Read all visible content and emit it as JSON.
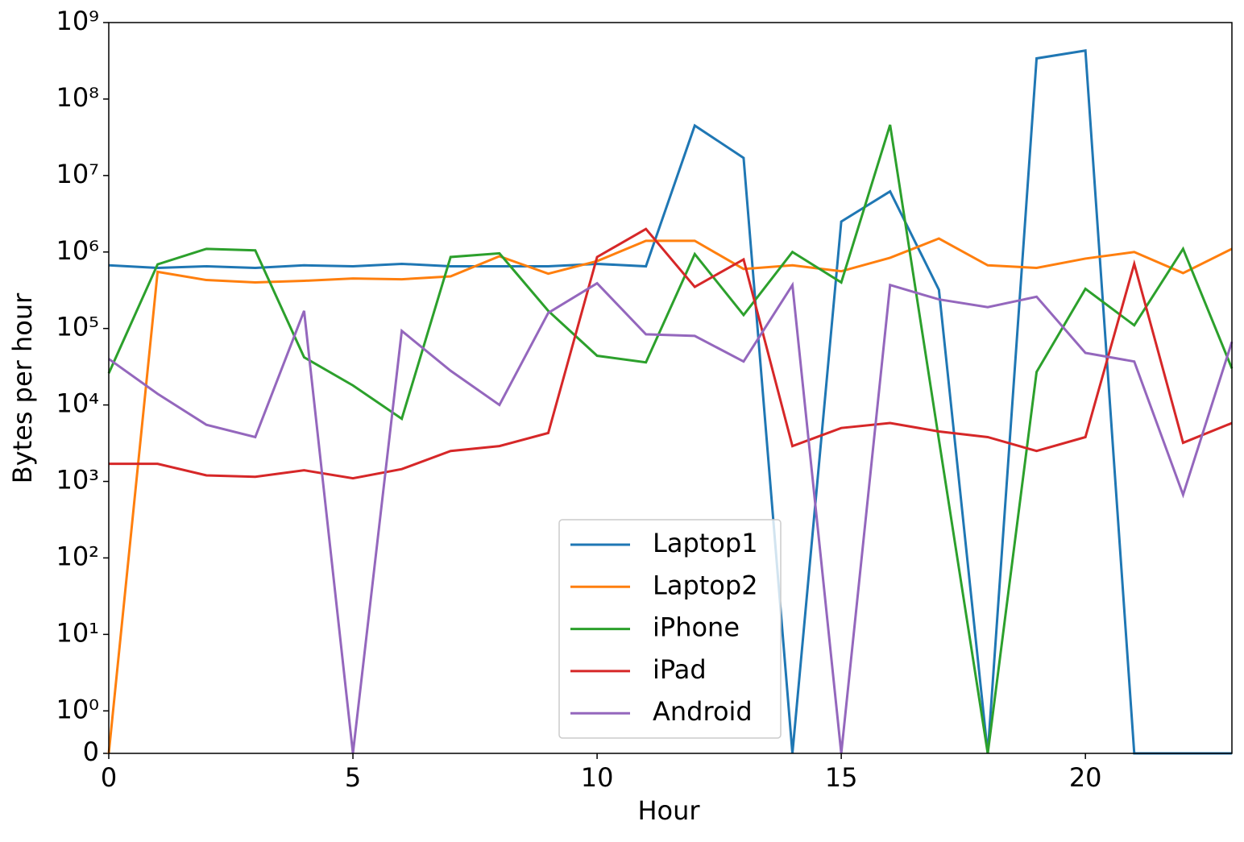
{
  "chart_data": {
    "type": "line",
    "x_label": "Hour",
    "y_label": "Bytes per hour",
    "x": [
      0,
      1,
      2,
      3,
      4,
      5,
      6,
      7,
      8,
      9,
      10,
      11,
      12,
      13,
      14,
      15,
      16,
      17,
      18,
      19,
      20,
      21,
      22,
      23
    ],
    "xlim": [
      0,
      23
    ],
    "xticks": [
      0,
      5,
      10,
      15,
      20
    ],
    "yscale": "symlog",
    "linthresh": 1,
    "linscale": 0.5,
    "ylim": [
      0,
      1000000000
    ],
    "yticks": [
      0,
      {
        "value": 1,
        "label": "10⁰"
      },
      {
        "value": 10,
        "label": "10¹"
      },
      {
        "value": 100,
        "label": "10²"
      },
      {
        "value": 1000,
        "label": "10³"
      },
      {
        "value": 10000,
        "label": "10⁴"
      },
      {
        "value": 100000,
        "label": "10⁵"
      },
      {
        "value": 1000000,
        "label": "10⁶"
      },
      {
        "value": 10000000,
        "label": "10⁷"
      },
      {
        "value": 100000000,
        "label": "10⁸"
      },
      {
        "value": 1000000000,
        "label": "10⁹"
      }
    ],
    "legend": "lower center",
    "series": [
      {
        "name": "Laptop1",
        "color": "#1f77b4",
        "values": [
          670000,
          620000,
          650000,
          620000,
          670000,
          650000,
          700000,
          650000,
          650000,
          650000,
          700000,
          650000,
          45000000,
          17000000,
          0,
          2500000,
          6200000,
          320000,
          0,
          340000000,
          430000000,
          0,
          0,
          0
        ]
      },
      {
        "name": "Laptop2",
        "color": "#ff7f0e",
        "values": [
          0,
          550000,
          430000,
          400000,
          420000,
          450000,
          440000,
          480000,
          880000,
          520000,
          760000,
          1400000,
          1400000,
          600000,
          670000,
          560000,
          840000,
          1500000,
          670000,
          620000,
          820000,
          1000000,
          530000,
          1100000
        ]
      },
      {
        "name": "iPhone",
        "color": "#2ca02c",
        "values": [
          26000,
          690000,
          1100000,
          1050000,
          42000,
          18000,
          6600,
          860000,
          960000,
          170000,
          44000,
          36000,
          940000,
          150000,
          1000000,
          400000,
          46000000,
          3500,
          0,
          27000,
          330000,
          110000,
          1100000,
          30000
        ]
      },
      {
        "name": "iPad",
        "color": "#d62728",
        "values": [
          1700,
          1700,
          1200,
          1150,
          1400,
          1100,
          1450,
          2500,
          2900,
          4300,
          860000,
          2000000,
          350000,
          800000,
          2900,
          5000,
          5800,
          4500,
          3800,
          2500,
          3800,
          700000,
          3200,
          5800
        ]
      },
      {
        "name": "Android",
        "color": "#9467bd",
        "values": [
          40000,
          14000,
          5500,
          3800,
          170000,
          0,
          93000,
          28000,
          10000,
          160000,
          390000,
          84000,
          80000,
          37000,
          370000,
          0,
          370000,
          240000,
          190000,
          260000,
          48000,
          37000,
          670,
          67000
        ]
      }
    ]
  }
}
